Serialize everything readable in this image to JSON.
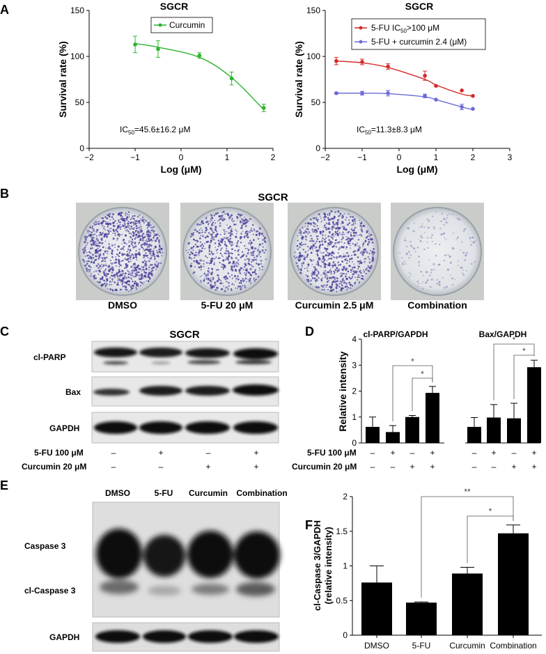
{
  "panels": {
    "A": {
      "letter": "A",
      "left": {
        "title": "SGCR",
        "legend": "Curcumin",
        "ylabel": "Survival rate (%)",
        "xlabel": "Log (μM)",
        "ic50": {
          "prefix": "IC",
          "sub": "50",
          "value": "=45.6±16.2 μM"
        }
      },
      "right": {
        "title": "SGCR",
        "legend1": {
          "prefix": "5-FU IC",
          "sub": "50",
          "suffix": ">100 μM"
        },
        "legend2": "5-FU + curcumin 2.4 (μM)",
        "ylabel": "Survival rate (%)",
        "xlabel": "Log (μM)",
        "ic50": {
          "prefix": "IC",
          "sub": "50",
          "value": "=11.3±8.3 μM"
        }
      }
    },
    "B": {
      "letter": "B",
      "title": "SGCR",
      "labels": [
        "DMSO",
        "5-FU 20 μM",
        "Curcumin 2.5 μM",
        "Combination"
      ]
    },
    "C": {
      "letter": "C",
      "title": "SGCR",
      "bands": [
        "cl-PARP",
        "Bax",
        "GAPDH"
      ],
      "treatments": [
        {
          "label": "5-FU 100 μM",
          "signs": [
            "–",
            "+",
            "–",
            "+"
          ]
        },
        {
          "label": "Curcumin 20 μM",
          "signs": [
            "–",
            "–",
            "+",
            "+"
          ]
        }
      ]
    },
    "D": {
      "letter": "D",
      "group1_title": "cl-PARP/GAPDH",
      "group2_title": "Bax/GAPDH",
      "treatments": [
        {
          "label": "5-FU 100 μM",
          "signs": [
            "–",
            "+",
            "–",
            "+"
          ]
        },
        {
          "label": "Curcumin 20 μM",
          "signs": [
            "–",
            "–",
            "+",
            "+"
          ]
        }
      ]
    },
    "E": {
      "letter": "E",
      "lanes": [
        "DMSO",
        "5-FU",
        "Curcumin",
        "Combination"
      ],
      "bands": [
        "Caspase 3",
        "cl-Caspase 3",
        "GAPDH"
      ]
    },
    "F": {
      "letter": "F"
    }
  },
  "chart_data": [
    {
      "panel": "A-left",
      "type": "line",
      "title": "SGCR",
      "xlabel": "Log (μM)",
      "ylabel": "Survival rate (%)",
      "xlim": [
        -2,
        2
      ],
      "ylim": [
        0,
        150
      ],
      "xticks": [
        -2,
        -1,
        0,
        1,
        2
      ],
      "yticks": [
        0,
        50,
        100,
        150
      ],
      "legend_position": "top-center",
      "series": [
        {
          "name": "Curcumin",
          "color": "#2db32d",
          "x": [
            -1.0,
            -0.5,
            0.4,
            1.1,
            1.8
          ],
          "y": [
            113,
            108,
            101,
            76,
            44
          ],
          "err": [
            9,
            9,
            3,
            7,
            4
          ],
          "fit_y": [
            114,
            110,
            99,
            77,
            42
          ]
        }
      ]
    },
    {
      "panel": "A-right",
      "type": "line",
      "title": "SGCR",
      "xlabel": "Log (μM)",
      "ylabel": "Survival rate (%)",
      "xlim": [
        -2,
        3
      ],
      "ylim": [
        0,
        150
      ],
      "xticks": [
        -2,
        -1,
        0,
        1,
        2,
        3
      ],
      "yticks": [
        0,
        50,
        100,
        150
      ],
      "legend_position": "top-right",
      "series": [
        {
          "name": "5-FU IC50>100 μM",
          "color": "#d42a2a",
          "x": [
            -1.7,
            -1.0,
            -0.3,
            0.7,
            1.0,
            1.7,
            2.0
          ],
          "y": [
            95,
            94,
            89,
            79,
            68,
            63,
            57
          ],
          "err": [
            4,
            3,
            3,
            5,
            0,
            0,
            0
          ],
          "fit_y": [
            95,
            93,
            88,
            75,
            69,
            59,
            57
          ]
        },
        {
          "name": "5-FU + curcumin 2.4 (μM)",
          "color": "#6b6bd8",
          "x": [
            -1.7,
            -1.0,
            -0.3,
            0.7,
            1.0,
            1.7,
            2.0
          ],
          "y": [
            60,
            60,
            60,
            57,
            53,
            45,
            43
          ],
          "err": [
            1,
            2,
            3,
            2,
            0,
            3,
            0
          ],
          "fit_y": [
            60,
            60,
            59.5,
            56,
            53,
            45,
            42
          ]
        }
      ]
    },
    {
      "panel": "D",
      "type": "bar",
      "ylabel": "Relative intensity",
      "ylim": [
        0,
        4
      ],
      "yticks": [
        0,
        1,
        2,
        3,
        4
      ],
      "groups": [
        {
          "name": "cl-PARP/GAPDH",
          "values": [
            0.62,
            0.42,
            1.0,
            1.93
          ],
          "errors": [
            0.38,
            0.25,
            0.06,
            0.25
          ]
        },
        {
          "name": "Bax/GAPDH",
          "values": [
            0.62,
            0.98,
            0.95,
            2.92
          ],
          "errors": [
            0.36,
            0.5,
            0.58,
            0.27
          ]
        }
      ],
      "significance": [
        {
          "group": 0,
          "from": 1,
          "to": 3,
          "label": "*"
        },
        {
          "group": 0,
          "from": 2,
          "to": 3,
          "label": "*"
        },
        {
          "group": 1,
          "from": 1,
          "to": 3,
          "label": "*"
        },
        {
          "group": 1,
          "from": 2,
          "to": 3,
          "label": "*"
        }
      ]
    },
    {
      "panel": "F",
      "type": "bar",
      "ylabel": [
        "cl-Caspase 3/GAPDH",
        "(relative intensity)"
      ],
      "categories": [
        "DMSO",
        "5-FU",
        "Curcumin",
        "Combination"
      ],
      "values": [
        0.76,
        0.47,
        0.89,
        1.47
      ],
      "errors": [
        0.24,
        0.01,
        0.09,
        0.12
      ],
      "ylim": [
        0,
        2
      ],
      "yticks": [
        0,
        0.5,
        1,
        1.5,
        2
      ],
      "significance": [
        {
          "from": 1,
          "to": 3,
          "label": "**"
        },
        {
          "from": 2,
          "to": 3,
          "label": "*"
        }
      ]
    }
  ]
}
